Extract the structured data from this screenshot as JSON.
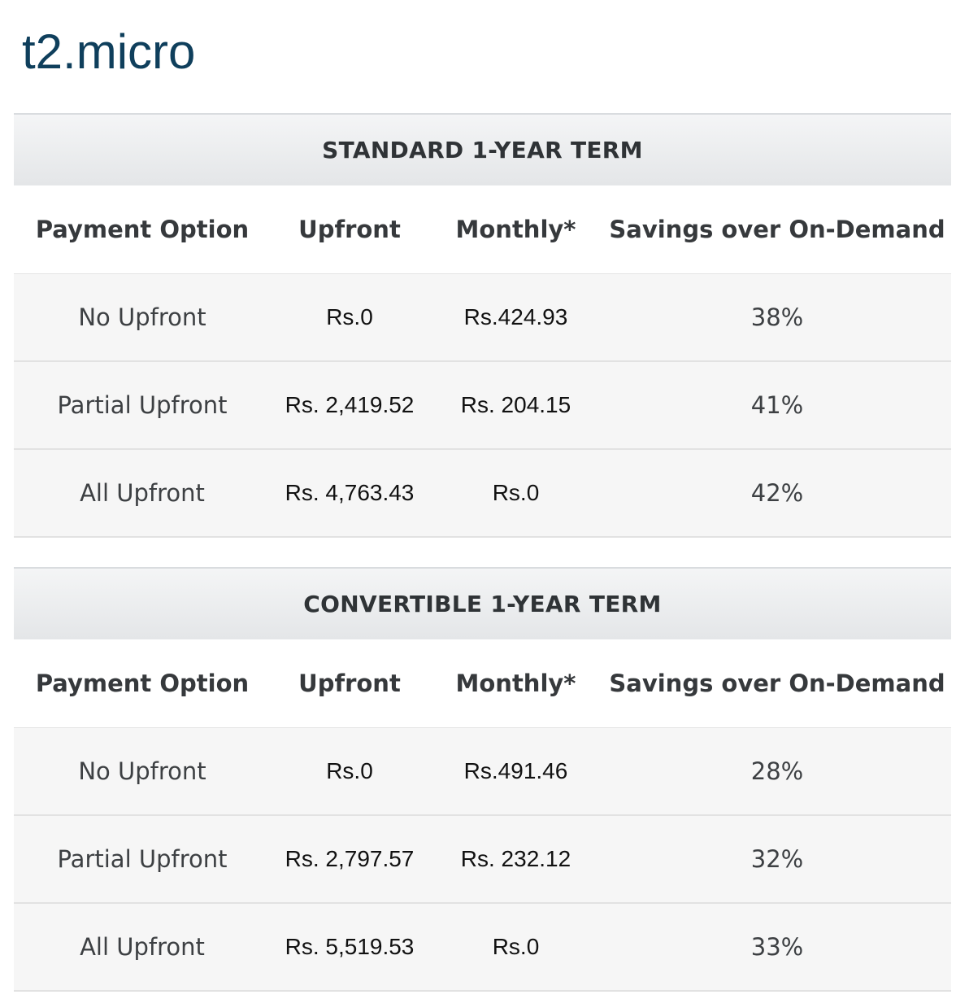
{
  "page_title": "t2.micro",
  "columns": {
    "payment_option": "Payment Option",
    "upfront": "Upfront",
    "monthly": "Monthly*",
    "savings": "Savings over On-Demand"
  },
  "tables": [
    {
      "term": "STANDARD 1-YEAR TERM",
      "rows": [
        {
          "option": "No Upfront",
          "upfront": "Rs.0",
          "monthly": "Rs.424.93",
          "savings": "38%"
        },
        {
          "option": "Partial Upfront",
          "upfront": "Rs. 2,419.52",
          "monthly": "Rs. 204.15",
          "savings": "41%"
        },
        {
          "option": "All Upfront",
          "upfront": "Rs. 4,763.43",
          "monthly": "Rs.0",
          "savings": "42%"
        }
      ]
    },
    {
      "term": "CONVERTIBLE 1-YEAR TERM",
      "rows": [
        {
          "option": "No Upfront",
          "upfront": "Rs.0",
          "monthly": "Rs.491.46",
          "savings": "28%"
        },
        {
          "option": "Partial Upfront",
          "upfront": "Rs. 2,797.57",
          "monthly": "Rs. 232.12",
          "savings": "32%"
        },
        {
          "option": "All Upfront",
          "upfront": "Rs. 5,519.53",
          "monthly": "Rs.0",
          "savings": "33%"
        }
      ]
    }
  ]
}
